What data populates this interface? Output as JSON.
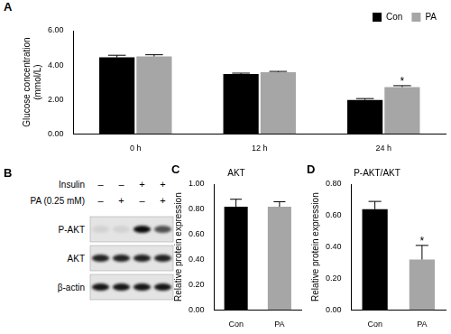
{
  "chart_data": [
    {
      "type": "bar",
      "panel": "A",
      "y_label": [
        "Glucose concentration",
        "(mmol/L)"
      ],
      "categories": [
        "0 h",
        "12 h",
        "24 h"
      ],
      "series": [
        {
          "name": "Con",
          "color": "#000000",
          "values": [
            4.45,
            3.48,
            1.97
          ],
          "errors": [
            0.12,
            0.05,
            0.08
          ]
        },
        {
          "name": "PA",
          "color": "#a6a6a6",
          "values": [
            4.5,
            3.58,
            2.72
          ],
          "errors": [
            0.1,
            0.05,
            0.08
          ]
        }
      ],
      "ylim": [
        0,
        6
      ],
      "yticks": [
        {
          "value": 0,
          "label": "0.00"
        },
        {
          "value": 2,
          "label": "2.00"
        },
        {
          "value": 4,
          "label": "4.00"
        },
        {
          "value": 6,
          "label": "6.00"
        }
      ],
      "grid": false,
      "legend": "upper right",
      "annotations": [
        {
          "text": "*",
          "category": "24 h",
          "series": "PA"
        }
      ]
    },
    {
      "type": "bar",
      "panel": "C",
      "title": "AKT",
      "y_label": "Relative protein expression",
      "categories": [
        "Con",
        "PA"
      ],
      "values": [
        0.82,
        0.82
      ],
      "errors": [
        0.06,
        0.04
      ],
      "colors": [
        "#000000",
        "#a6a6a6"
      ],
      "ylim": [
        0,
        1
      ],
      "yticks": [
        {
          "value": 0,
          "label": "0.00"
        },
        {
          "value": 0.2,
          "label": "0.20"
        },
        {
          "value": 0.4,
          "label": "0.40"
        },
        {
          "value": 0.6,
          "label": "0.60"
        },
        {
          "value": 0.8,
          "label": "0.80"
        },
        {
          "value": 1,
          "label": "1.00"
        }
      ],
      "grid": false
    },
    {
      "type": "bar",
      "panel": "D",
      "title": "P-AKT/AKT",
      "y_label": "Relative protein expression",
      "categories": [
        "Con",
        "PA"
      ],
      "values": [
        0.64,
        0.32
      ],
      "errors": [
        0.05,
        0.09
      ],
      "colors": [
        "#000000",
        "#a6a6a6"
      ],
      "ylim": [
        0,
        0.8
      ],
      "yticks": [
        {
          "value": 0,
          "label": "0.00"
        },
        {
          "value": 0.2,
          "label": "0.20"
        },
        {
          "value": 0.4,
          "label": "0.40"
        },
        {
          "value": 0.6,
          "label": "0.60"
        },
        {
          "value": 0.8,
          "label": "0.80"
        }
      ],
      "grid": false,
      "annotations": [
        {
          "text": "*",
          "category": "PA"
        }
      ]
    }
  ],
  "blot": {
    "panel": "B",
    "conditions": [
      {
        "label": "Insulin",
        "values": [
          "–",
          "–",
          "+",
          "+"
        ]
      },
      {
        "label": "PA (0.25 mM)",
        "values": [
          "–",
          "+",
          "–",
          "+"
        ]
      }
    ],
    "rows": [
      {
        "label": "P-AKT",
        "intensity": [
          0.08,
          0.08,
          0.95,
          0.65
        ]
      },
      {
        "label": "AKT",
        "intensity": [
          0.85,
          0.85,
          0.85,
          0.85
        ]
      },
      {
        "label": "β-actin",
        "intensity": [
          0.9,
          0.9,
          0.9,
          0.9
        ]
      }
    ]
  }
}
